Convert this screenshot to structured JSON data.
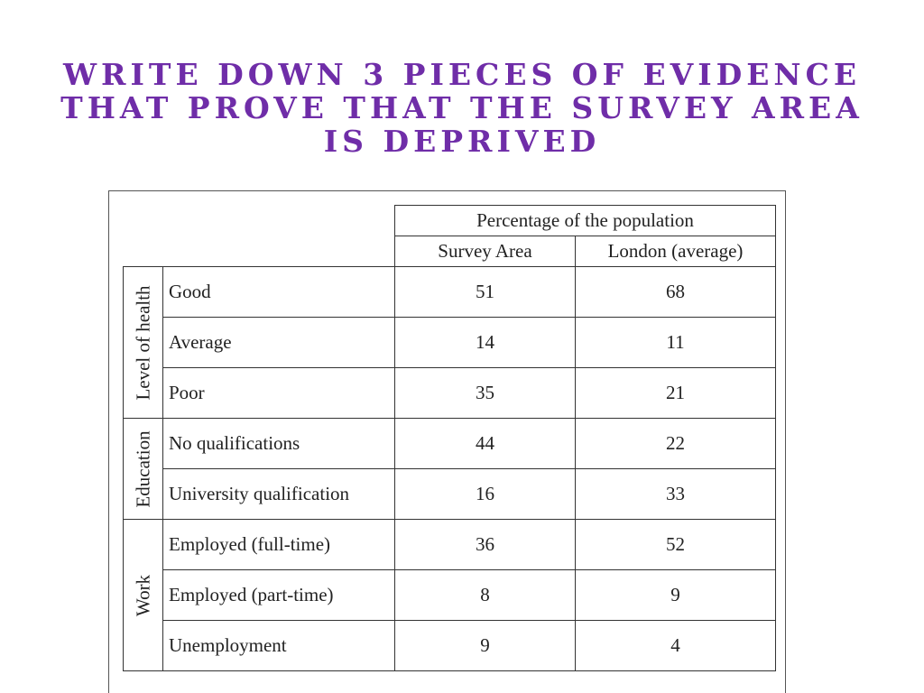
{
  "title": "Write down 3 pieces of evidence that prove that the survey area is deprived",
  "table": {
    "header_top": "Percentage of the population",
    "col_survey": "Survey Area",
    "col_london": "London (average)",
    "groups": [
      {
        "name": "Level of health",
        "rows": [
          {
            "label": "Good",
            "survey": "51",
            "london": "68"
          },
          {
            "label": "Average",
            "survey": "14",
            "london": "11"
          },
          {
            "label": "Poor",
            "survey": "35",
            "london": "21"
          }
        ]
      },
      {
        "name": "Education",
        "rows": [
          {
            "label": "No qualifications",
            "survey": "44",
            "london": "22"
          },
          {
            "label": "University qualification",
            "survey": "16",
            "london": "33"
          }
        ]
      },
      {
        "name": "Work",
        "rows": [
          {
            "label": "Employed (full-time)",
            "survey": "36",
            "london": "52"
          },
          {
            "label": "Employed (part-time)",
            "survey": "8",
            "london": "9"
          },
          {
            "label": "Unemployment",
            "survey": "9",
            "london": "4"
          }
        ]
      }
    ]
  }
}
